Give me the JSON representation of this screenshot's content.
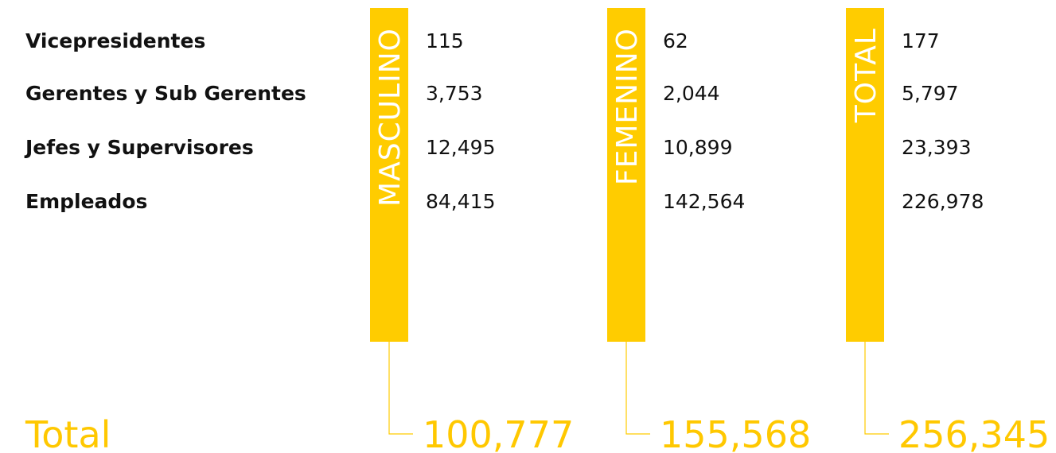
{
  "total_label": "Total",
  "row_labels": [
    "Vicepresidentes",
    "Gerentes y Sub Gerentes",
    "Jefes y Supervisores",
    "Empleados"
  ],
  "columns": [
    {
      "header": "MASCULINO",
      "values": [
        "115",
        "3,753",
        "12,495",
        "84,415"
      ],
      "total": "100,777"
    },
    {
      "header": "FEMENINO",
      "values": [
        "62",
        "2,044",
        "10,899",
        "142,564"
      ],
      "total": "155,568"
    },
    {
      "header": "TOTAL",
      "values": [
        "177",
        "5,797",
        "23,393",
        "226,978"
      ],
      "total": "256,345"
    }
  ]
}
